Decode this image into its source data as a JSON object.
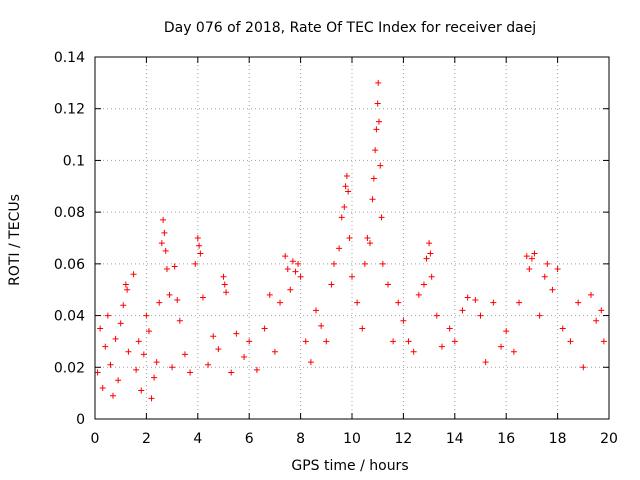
{
  "chart_data": {
    "type": "scatter",
    "title": "Day 076 of 2018, Rate Of TEC Index for receiver daej",
    "xlabel": "GPS time / hours",
    "ylabel": "ROTI / TECUs",
    "xlim": [
      0,
      20
    ],
    "ylim": [
      0,
      0.14
    ],
    "x_ticks": [
      "0",
      "2",
      "4",
      "6",
      "8",
      "10",
      "12",
      "14",
      "16",
      "18",
      "20"
    ],
    "y_ticks": [
      "0",
      "0.02",
      "0.04",
      "0.06",
      "0.08",
      "0.1",
      "0.12",
      "0.14"
    ],
    "grid": true,
    "marker": "+",
    "marker_color": "#ff0000",
    "series": [
      {
        "name": "ROTI",
        "points": [
          [
            0.1,
            0.018
          ],
          [
            0.2,
            0.035
          ],
          [
            0.3,
            0.012
          ],
          [
            0.4,
            0.028
          ],
          [
            0.5,
            0.04
          ],
          [
            0.6,
            0.021
          ],
          [
            0.7,
            0.009
          ],
          [
            0.8,
            0.031
          ],
          [
            0.9,
            0.015
          ],
          [
            1.0,
            0.037
          ],
          [
            1.1,
            0.044
          ],
          [
            1.2,
            0.052
          ],
          [
            1.25,
            0.05
          ],
          [
            1.3,
            0.026
          ],
          [
            1.5,
            0.056
          ],
          [
            1.6,
            0.019
          ],
          [
            1.7,
            0.03
          ],
          [
            1.8,
            0.011
          ],
          [
            1.9,
            0.025
          ],
          [
            2.0,
            0.04
          ],
          [
            2.1,
            0.034
          ],
          [
            2.2,
            0.008
          ],
          [
            2.3,
            0.016
          ],
          [
            2.4,
            0.022
          ],
          [
            2.5,
            0.045
          ],
          [
            2.6,
            0.068
          ],
          [
            2.65,
            0.077
          ],
          [
            2.7,
            0.072
          ],
          [
            2.75,
            0.065
          ],
          [
            2.8,
            0.058
          ],
          [
            2.9,
            0.048
          ],
          [
            3.0,
            0.02
          ],
          [
            3.1,
            0.059
          ],
          [
            3.2,
            0.046
          ],
          [
            3.3,
            0.038
          ],
          [
            3.5,
            0.025
          ],
          [
            3.7,
            0.018
          ],
          [
            3.9,
            0.06
          ],
          [
            4.0,
            0.07
          ],
          [
            4.05,
            0.067
          ],
          [
            4.1,
            0.064
          ],
          [
            4.2,
            0.047
          ],
          [
            4.4,
            0.021
          ],
          [
            4.6,
            0.032
          ],
          [
            4.8,
            0.027
          ],
          [
            5.0,
            0.055
          ],
          [
            5.05,
            0.052
          ],
          [
            5.1,
            0.049
          ],
          [
            5.3,
            0.018
          ],
          [
            5.5,
            0.033
          ],
          [
            5.8,
            0.024
          ],
          [
            6.0,
            0.03
          ],
          [
            6.3,
            0.019
          ],
          [
            6.6,
            0.035
          ],
          [
            6.8,
            0.048
          ],
          [
            7.0,
            0.026
          ],
          [
            7.2,
            0.045
          ],
          [
            7.4,
            0.063
          ],
          [
            7.5,
            0.058
          ],
          [
            7.6,
            0.05
          ],
          [
            7.7,
            0.061
          ],
          [
            7.8,
            0.057
          ],
          [
            7.9,
            0.06
          ],
          [
            8.0,
            0.055
          ],
          [
            8.2,
            0.03
          ],
          [
            8.4,
            0.022
          ],
          [
            8.6,
            0.042
          ],
          [
            8.8,
            0.036
          ],
          [
            9.0,
            0.03
          ],
          [
            9.2,
            0.052
          ],
          [
            9.3,
            0.06
          ],
          [
            9.5,
            0.066
          ],
          [
            9.6,
            0.078
          ],
          [
            9.7,
            0.082
          ],
          [
            9.75,
            0.09
          ],
          [
            9.8,
            0.094
          ],
          [
            9.85,
            0.088
          ],
          [
            9.9,
            0.07
          ],
          [
            10.0,
            0.055
          ],
          [
            10.2,
            0.045
          ],
          [
            10.4,
            0.035
          ],
          [
            10.5,
            0.06
          ],
          [
            10.6,
            0.07
          ],
          [
            10.7,
            0.068
          ],
          [
            10.8,
            0.085
          ],
          [
            10.85,
            0.093
          ],
          [
            10.9,
            0.104
          ],
          [
            10.95,
            0.112
          ],
          [
            11.0,
            0.122
          ],
          [
            11.02,
            0.13
          ],
          [
            11.05,
            0.115
          ],
          [
            11.1,
            0.098
          ],
          [
            11.15,
            0.078
          ],
          [
            11.2,
            0.06
          ],
          [
            11.4,
            0.052
          ],
          [
            11.6,
            0.03
          ],
          [
            11.8,
            0.045
          ],
          [
            12.0,
            0.038
          ],
          [
            12.2,
            0.03
          ],
          [
            12.4,
            0.026
          ],
          [
            12.6,
            0.048
          ],
          [
            12.8,
            0.052
          ],
          [
            12.9,
            0.062
          ],
          [
            13.0,
            0.068
          ],
          [
            13.05,
            0.064
          ],
          [
            13.1,
            0.055
          ],
          [
            13.3,
            0.04
          ],
          [
            13.5,
            0.028
          ],
          [
            13.8,
            0.035
          ],
          [
            14.0,
            0.03
          ],
          [
            14.3,
            0.042
          ],
          [
            14.5,
            0.047
          ],
          [
            14.8,
            0.046
          ],
          [
            15.0,
            0.04
          ],
          [
            15.2,
            0.022
          ],
          [
            15.5,
            0.045
          ],
          [
            15.8,
            0.028
          ],
          [
            16.0,
            0.034
          ],
          [
            16.3,
            0.026
          ],
          [
            16.5,
            0.045
          ],
          [
            16.8,
            0.063
          ],
          [
            16.9,
            0.058
          ],
          [
            17.0,
            0.062
          ],
          [
            17.1,
            0.064
          ],
          [
            17.3,
            0.04
          ],
          [
            17.5,
            0.055
          ],
          [
            17.6,
            0.06
          ],
          [
            17.8,
            0.05
          ],
          [
            18.0,
            0.058
          ],
          [
            18.2,
            0.035
          ],
          [
            18.5,
            0.03
          ],
          [
            18.8,
            0.045
          ],
          [
            19.0,
            0.02
          ],
          [
            19.3,
            0.048
          ],
          [
            19.5,
            0.038
          ],
          [
            19.7,
            0.042
          ],
          [
            19.8,
            0.03
          ]
        ]
      }
    ]
  }
}
